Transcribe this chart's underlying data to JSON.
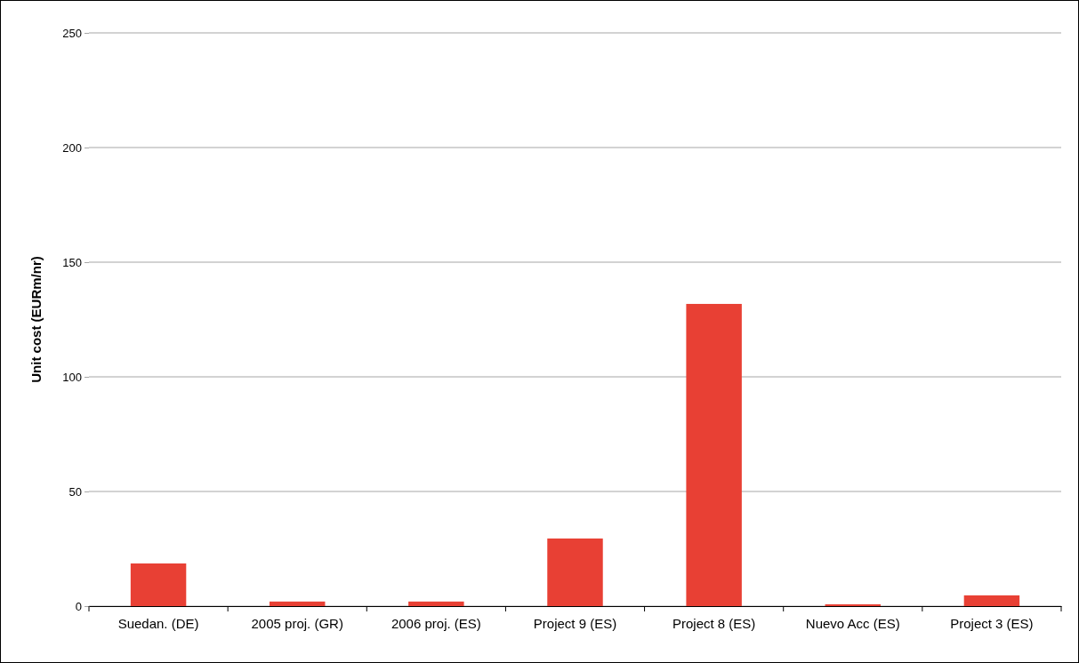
{
  "chart_data": {
    "type": "bar",
    "ylabel": "Unit cost (EURm/nr)",
    "categories": [
      "Suedan. (DE)",
      "2005 proj. (GR)",
      "2006 proj. (ES)",
      "Project 9 (ES)",
      "Project 8 (ES)",
      "Nuevo Acc (ES)",
      "Project 3 (ES)"
    ],
    "values": [
      18.6,
      2,
      2,
      29.5,
      131.8,
      0.8,
      4.7
    ],
    "color": "#e84034",
    "ylim": [
      0,
      250
    ],
    "yticks": [
      0,
      50,
      100,
      150,
      200,
      250
    ],
    "grid": "y"
  }
}
